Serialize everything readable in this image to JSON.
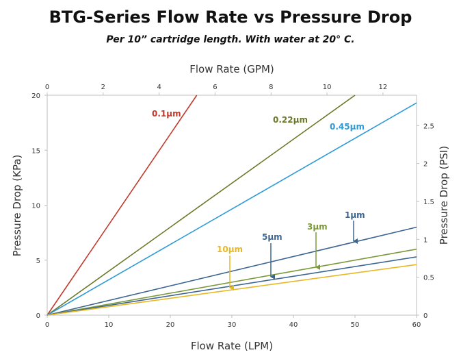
{
  "header": {
    "title": "BTG-Series Flow Rate vs Pressure Drop",
    "subtitle": "Per 10” cartridge length. With water at 20° C."
  },
  "chart_data": {
    "type": "line",
    "title": "BTG-Series Flow Rate vs Pressure Drop",
    "subtitle": "Per 10” cartridge length. With water at 20° C.",
    "xlabel": "Flow Rate (LPM)",
    "x2label": "Flow Rate (GPM)",
    "ylabel": "Pressure Drop (KPa)",
    "y2label": "Pressure Drop (PSI)",
    "xlim": [
      0,
      60
    ],
    "ylim": [
      0,
      20
    ],
    "x2lim": [
      0,
      13.2
    ],
    "y2lim": [
      0,
      2.9
    ],
    "xticks": [
      "0",
      "10",
      "20",
      "30",
      "40",
      "50",
      "60"
    ],
    "yticks": [
      "0",
      "5",
      "10",
      "15",
      "20"
    ],
    "x2ticks": [
      "0",
      "2",
      "4",
      "6",
      "8",
      "10",
      "12"
    ],
    "y2ticks": [
      "0",
      "0.5",
      "1",
      "1.5",
      "2",
      "2.5"
    ],
    "grid": false,
    "series": [
      {
        "name": "0.1µm",
        "color": "#c0392b",
        "x": [
          0,
          24.3
        ],
        "y": [
          0,
          20
        ]
      },
      {
        "name": "0.22µm",
        "color": "#6b7a2a",
        "x": [
          0,
          50
        ],
        "y": [
          0,
          20
        ]
      },
      {
        "name": "0.45µm",
        "color": "#2e9bd6",
        "x": [
          0,
          60
        ],
        "y": [
          0,
          19.3
        ]
      },
      {
        "name": "1µm",
        "color": "#3d6591",
        "x": [
          0,
          60
        ],
        "y": [
          0,
          8
        ]
      },
      {
        "name": "3µm",
        "color": "#7a9a3a",
        "x": [
          0,
          60
        ],
        "y": [
          0,
          6
        ]
      },
      {
        "name": "5µm",
        "color": "#3d6591",
        "x": [
          0,
          60
        ],
        "y": [
          0,
          5.3
        ]
      },
      {
        "name": "10µm",
        "color": "#e8b823",
        "x": [
          0,
          60
        ],
        "y": [
          0,
          4.6
        ]
      }
    ]
  }
}
